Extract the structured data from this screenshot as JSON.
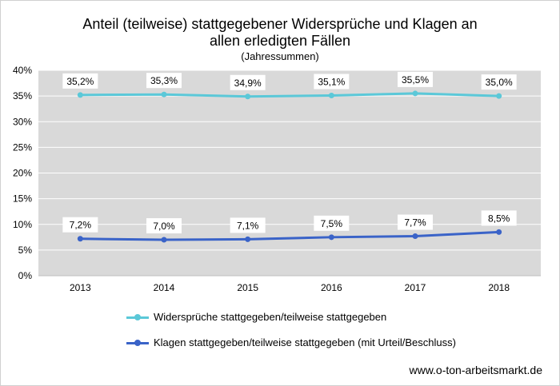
{
  "chart_data": {
    "type": "line",
    "title_line1": "Anteil (teilweise) stattgegebener Widersprüche und Klagen an",
    "title_line2": "allen erledigten Fällen",
    "subtitle": "(Jahressummen)",
    "categories": [
      "2013",
      "2014",
      "2015",
      "2016",
      "2017",
      "2018"
    ],
    "ylim": [
      0,
      40
    ],
    "yticks": [
      0,
      5,
      10,
      15,
      20,
      25,
      30,
      35,
      40
    ],
    "ytick_labels": [
      "0%",
      "5%",
      "10%",
      "15%",
      "20%",
      "25%",
      "30%",
      "35%",
      "40%"
    ],
    "grid": true,
    "legend_position": "bottom",
    "series": [
      {
        "name": "Widersprüche stattgegeben/teilweise stattgegeben",
        "values": [
          35.2,
          35.3,
          34.9,
          35.1,
          35.5,
          35.0
        ],
        "labels": [
          "35,2%",
          "35,3%",
          "34,9%",
          "35,1%",
          "35,5%",
          "35,0%"
        ],
        "color": "#5bc8d8"
      },
      {
        "name": "Klagen stattgegeben/teilweise stattgegeben (mit Urteil/Beschluss)",
        "values": [
          7.2,
          7.0,
          7.1,
          7.5,
          7.7,
          8.5
        ],
        "labels": [
          "7,2%",
          "7,0%",
          "7,1%",
          "7,5%",
          "7,7%",
          "8,5%"
        ],
        "color": "#3a63c8"
      }
    ]
  },
  "source_text": "www.o-ton-arbeitsmarkt.de",
  "colors": {
    "plot_background": "#d9d9d9",
    "grid": "#ffffff"
  }
}
